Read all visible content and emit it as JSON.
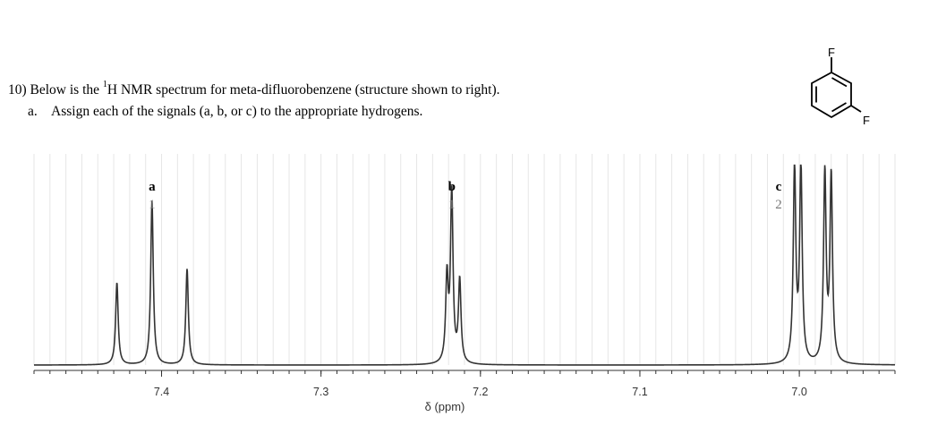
{
  "question": {
    "line1_prefix": "10) Below is the ",
    "line1_sup": "1",
    "line1_suffix": "H NMR spectrum for meta-difluorobenzene (structure shown to right).",
    "item_letter": "a.",
    "item_text": "Assign each of the signals (a, b, or c) to the appropriate hydrogens."
  },
  "molecule": {
    "atom_labels": [
      "F",
      "F"
    ]
  },
  "chart_data": {
    "type": "line",
    "title": "",
    "xlabel": "δ (ppm)",
    "ylabel": "",
    "xlim": [
      7.48,
      6.94
    ],
    "x_reversed": true,
    "ylim": [
      0,
      1.05
    ],
    "grid": true,
    "grid_spacing_ppm": 0.01,
    "x_ticks": [
      7.4,
      7.3,
      7.2,
      7.1,
      7.0
    ],
    "x_tick_labels": [
      "7.4",
      "7.3",
      "7.2",
      "7.1",
      "7.0"
    ],
    "peaks": [
      {
        "x": 7.428,
        "y": 0.42
      },
      {
        "x": 7.406,
        "y": 0.84
      },
      {
        "x": 7.384,
        "y": 0.49
      },
      {
        "x": 7.221,
        "y": 0.43
      },
      {
        "x": 7.218,
        "y": 0.87
      },
      {
        "x": 7.213,
        "y": 0.42
      },
      {
        "x": 7.003,
        "y": 1.0
      },
      {
        "x": 6.999,
        "y": 1.0
      },
      {
        "x": 6.984,
        "y": 0.97
      },
      {
        "x": 6.98,
        "y": 0.95
      }
    ],
    "signals": [
      {
        "label": "a",
        "integration": "1",
        "x": 7.406
      },
      {
        "label": "b",
        "integration": "1",
        "x": 7.218
      },
      {
        "label": "c",
        "integration": "2",
        "x": 7.013
      }
    ],
    "colors": {
      "trace": "#333333",
      "grid": "#e6e6e6",
      "axis": "#333333",
      "integration": "#777777"
    }
  }
}
